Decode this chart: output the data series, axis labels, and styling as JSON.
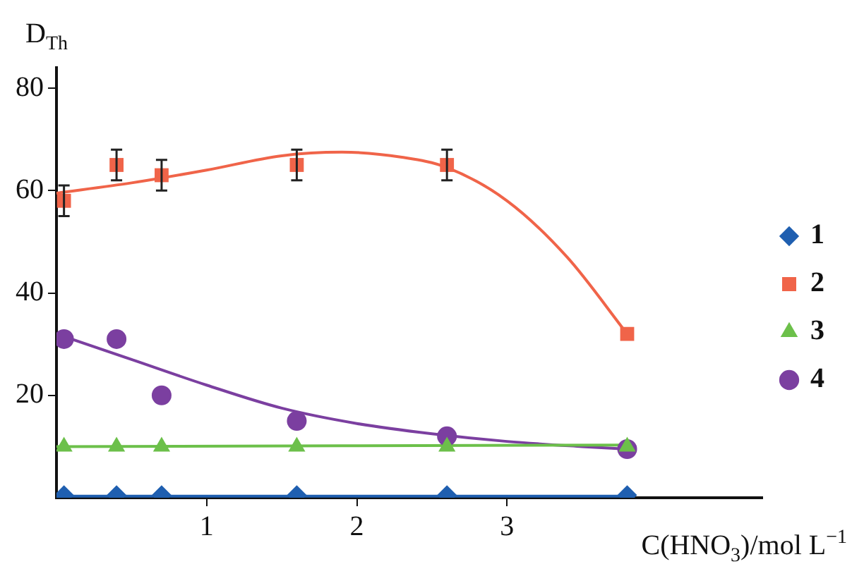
{
  "chart_data": {
    "type": "scatter",
    "xlabel": "C(HNO$_{3}$)/mol L$^{−1}$",
    "ylabel": "D$_{Th}$",
    "xlim": [
      0,
      4.7
    ],
    "xticks": [
      1,
      2,
      3
    ],
    "ylim": [
      0,
      84
    ],
    "yticks": [
      20,
      40,
      60,
      80
    ],
    "grid": false,
    "legend": "right",
    "series": [
      {
        "name": "1",
        "color": "#1f5fb0",
        "marker": "diamond",
        "x": [
          0.05,
          0.4,
          0.7,
          1.6,
          2.6,
          3.8
        ],
        "values": [
          0.5,
          0.5,
          0.5,
          0.5,
          0.5,
          0.5
        ]
      },
      {
        "name": "2",
        "color": "#f06449",
        "marker": "square",
        "x": [
          0.05,
          0.4,
          0.7,
          1.6,
          2.6,
          3.8
        ],
        "values": [
          58,
          65,
          63,
          65,
          65,
          32
        ],
        "errors": [
          3,
          3,
          3,
          3,
          3,
          null
        ]
      },
      {
        "name": "3",
        "color": "#6cc04a",
        "marker": "triangle",
        "x": [
          0.05,
          0.4,
          0.7,
          1.6,
          2.6,
          3.8
        ],
        "values": [
          10,
          10,
          10,
          10,
          10,
          10
        ]
      },
      {
        "name": "4",
        "color": "#7b3fa0",
        "marker": "circle",
        "x": [
          0.05,
          0.4,
          0.7,
          1.6,
          2.6,
          3.8
        ],
        "values": [
          31,
          31,
          20,
          15,
          12,
          9.5
        ]
      },
      {
        "type": "line",
        "color": "#1f5fb0",
        "marker": "none",
        "x": [
          0,
          3.8
        ],
        "values": [
          0.3,
          0.3
        ]
      },
      {
        "type": "line",
        "color": "#f06449",
        "marker": "none",
        "x": [
          0,
          0.5,
          1,
          1.5,
          1.9,
          2.3,
          2.6,
          3,
          3.4,
          3.8
        ],
        "values": [
          59.5,
          61.5,
          64,
          66.8,
          67.5,
          66.5,
          64.5,
          58,
          47,
          32
        ]
      },
      {
        "type": "line",
        "color": "#6cc04a",
        "marker": "none",
        "x": [
          0,
          3.8
        ],
        "values": [
          10,
          10.3
        ]
      },
      {
        "type": "line",
        "color": "#7b3fa0",
        "marker": "none",
        "x": [
          0,
          0.5,
          1,
          1.5,
          2,
          2.5,
          3,
          3.5,
          3.8
        ],
        "values": [
          32,
          27,
          22,
          17.5,
          14.5,
          12.5,
          11,
          10,
          9.5
        ]
      }
    ]
  }
}
